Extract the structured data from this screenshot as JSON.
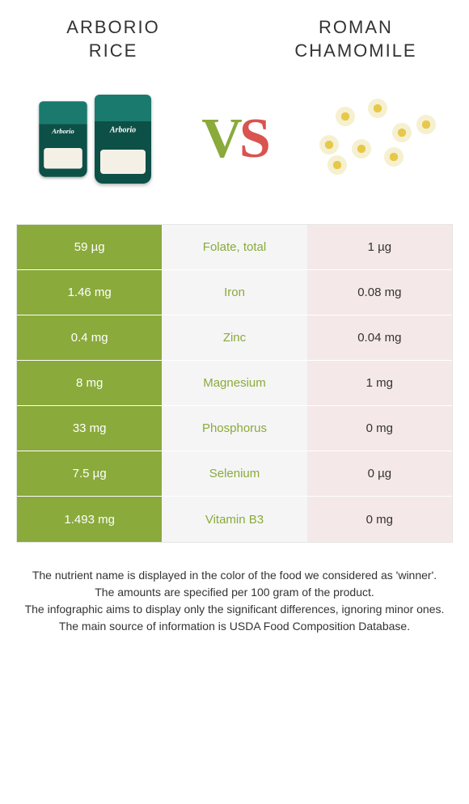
{
  "foods": {
    "left": {
      "name_line1": "ARBORIO",
      "name_line2": "RICE"
    },
    "right": {
      "name_line1": "ROMAN",
      "name_line2": "CHAMOMILE"
    }
  },
  "vs": {
    "v": "V",
    "s": "S"
  },
  "colors": {
    "left_bg": "#8aaa3b",
    "mid_bg": "#f5f5f5",
    "right_bg": "#f5e8e8",
    "left_text": "#ffffff",
    "mid_text": "#8aaa3b",
    "right_text": "#333333"
  },
  "rows": [
    {
      "left": "59 µg",
      "label": "Folate, total",
      "right": "1 µg"
    },
    {
      "left": "1.46 mg",
      "label": "Iron",
      "right": "0.08 mg"
    },
    {
      "left": "0.4 mg",
      "label": "Zinc",
      "right": "0.04 mg"
    },
    {
      "left": "8 mg",
      "label": "Magnesium",
      "right": "1 mg"
    },
    {
      "left": "33 mg",
      "label": "Phosphorus",
      "right": "0 mg"
    },
    {
      "left": "7.5 µg",
      "label": "Selenium",
      "right": "0 µg"
    },
    {
      "left": "1.493 mg",
      "label": "Vitamin B3",
      "right": "0 mg"
    }
  ],
  "footer": {
    "l1": "The nutrient name is displayed in the color of the food we considered as 'winner'.",
    "l2": "The amounts are specified per 100 gram of the product.",
    "l3": "The infographic aims to display only the significant differences, ignoring minor ones.",
    "l4": "The main source of information is USDA Food Composition Database."
  }
}
